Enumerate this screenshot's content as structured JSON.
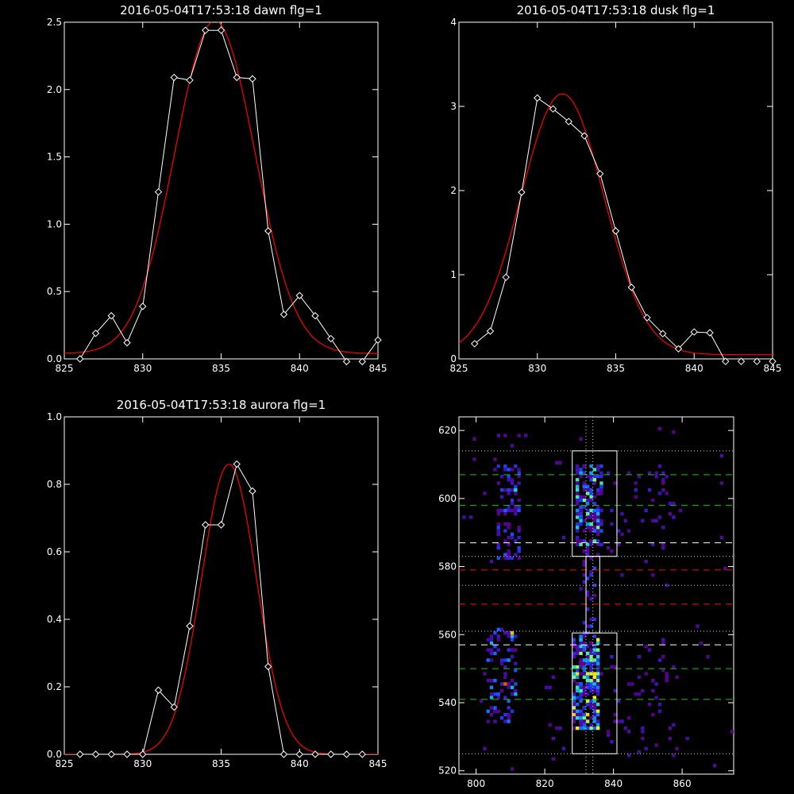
{
  "chart_data": [
    {
      "type": "line",
      "title": "2016-05-04T17:53:18 dawn flg=1",
      "xlim": [
        825,
        845
      ],
      "ylim": [
        0,
        2.5
      ],
      "x_ticks": [
        825,
        830,
        835,
        840,
        845
      ],
      "y_ticks": [
        0.0,
        0.5,
        1.0,
        1.5,
        2.0,
        2.5
      ],
      "x_tick_labels": [
        "825",
        "830",
        "835",
        "840",
        "845"
      ],
      "y_tick_labels": [
        "0.0",
        "0.5",
        "1.0",
        "1.5",
        "2.0",
        "2.5"
      ],
      "series": [
        {
          "color": "#ffffff",
          "marker": "diamond",
          "x": [
            826,
            827,
            828,
            829,
            830,
            831,
            832,
            833,
            834,
            835,
            836,
            837,
            838,
            839,
            840,
            841,
            842,
            843,
            844,
            845
          ],
          "y": [
            0.0,
            0.19,
            0.32,
            0.12,
            0.39,
            1.24,
            2.09,
            2.07,
            2.44,
            2.44,
            2.09,
            2.08,
            0.95,
            0.33,
            0.47,
            0.32,
            0.15,
            -0.02,
            -0.02,
            0.14
          ]
        },
        {
          "color": "#ff0000",
          "fit": "gaussian",
          "peak": 2.47,
          "center": 834.6,
          "sigma": 2.55,
          "baseline": 0.04
        }
      ]
    },
    {
      "type": "line",
      "title": "2016-05-04T17:53:18 dusk flg=1",
      "xlim": [
        825,
        845
      ],
      "ylim": [
        0,
        4
      ],
      "x_ticks": [
        825,
        830,
        835,
        840,
        845
      ],
      "y_ticks": [
        0,
        1,
        2,
        3,
        4
      ],
      "x_tick_labels": [
        "825",
        "830",
        "835",
        "840",
        "845"
      ],
      "y_tick_labels": [
        "0",
        "1",
        "2",
        "3",
        "4"
      ],
      "series": [
        {
          "color": "#ffffff",
          "marker": "diamond",
          "x": [
            826,
            827,
            828,
            829,
            830,
            831,
            832,
            833,
            834,
            835,
            836,
            837,
            838,
            839,
            840,
            841,
            842,
            843,
            844,
            845
          ],
          "y": [
            0.18,
            0.33,
            0.97,
            1.98,
            3.1,
            2.97,
            2.82,
            2.65,
            2.2,
            1.52,
            0.85,
            0.49,
            0.3,
            0.12,
            0.32,
            0.31,
            -0.03,
            -0.03,
            -0.03,
            -0.03
          ]
        },
        {
          "color": "#ff0000",
          "fit": "gaussian",
          "peak": 3.1,
          "center": 831.6,
          "sigma": 2.65,
          "baseline": 0.05
        }
      ]
    },
    {
      "type": "line",
      "title": "2016-05-04T17:53:18 aurora flg=1",
      "xlim": [
        825,
        845
      ],
      "ylim": [
        0,
        1.0
      ],
      "x_ticks": [
        825,
        830,
        835,
        840,
        845
      ],
      "y_ticks": [
        0.0,
        0.2,
        0.4,
        0.6,
        0.8,
        1.0
      ],
      "x_tick_labels": [
        "825",
        "830",
        "835",
        "840",
        "845"
      ],
      "y_tick_labels": [
        "0.0",
        "0.2",
        "0.4",
        "0.6",
        "0.8",
        "1.0"
      ],
      "series": [
        {
          "color": "#ffffff",
          "marker": "diamond",
          "x": [
            826,
            827,
            828,
            829,
            830,
            831,
            832,
            833,
            834,
            835,
            836,
            837,
            838,
            839,
            840,
            841,
            842,
            843,
            844
          ],
          "y": [
            0.0,
            0.0,
            0.0,
            0.0,
            0.0,
            0.19,
            0.14,
            0.38,
            0.68,
            0.68,
            0.86,
            0.78,
            0.26,
            0.0,
            0.0,
            0.0,
            0.0,
            0.0,
            0.0
          ]
        },
        {
          "color": "#ff0000",
          "fit": "gaussian",
          "peak": 0.86,
          "center": 835.5,
          "sigma": 1.75,
          "baseline": 0.0
        }
      ]
    },
    {
      "type": "heatmap",
      "xlim": [
        795,
        875
      ],
      "ylim": [
        519,
        624
      ],
      "x_ticks": [
        800,
        820,
        840,
        860
      ],
      "y_ticks": [
        520,
        540,
        560,
        580,
        600,
        620
      ],
      "x_tick_labels": [
        "800",
        "820",
        "840",
        "860"
      ],
      "y_tick_labels": [
        "520",
        "540",
        "560",
        "580",
        "600",
        "620"
      ],
      "boxes": [
        {
          "x0": 828,
          "x1": 841,
          "y0": 583,
          "y1": 614
        },
        {
          "x0": 828,
          "x1": 841,
          "y0": 525,
          "y1": 560.5
        },
        {
          "x0": 832,
          "x1": 836,
          "y0": 560.5,
          "y1": 583
        }
      ],
      "vlines_dotted": [
        832,
        834
      ],
      "hlines": [
        {
          "y": 614,
          "color": "#cccccc",
          "style": "dotted"
        },
        {
          "y": 607,
          "color": "#00cc00",
          "style": "dashed"
        },
        {
          "y": 598,
          "color": "#00cc00",
          "style": "dashed"
        },
        {
          "y": 587,
          "color": "#ffffff",
          "style": "dashed"
        },
        {
          "y": 583,
          "color": "#cccccc",
          "style": "dotted"
        },
        {
          "y": 579,
          "color": "#ff0000",
          "style": "dashed"
        },
        {
          "y": 574.5,
          "color": "#cccccc",
          "style": "dotted"
        },
        {
          "y": 569,
          "color": "#ff0000",
          "style": "dashed"
        },
        {
          "y": 561,
          "color": "#cccccc",
          "style": "dotted"
        },
        {
          "y": 557,
          "color": "#ffffff",
          "style": "dashed"
        },
        {
          "y": 550,
          "color": "#00cc00",
          "style": "dashed"
        },
        {
          "y": 541,
          "color": "#00cc00",
          "style": "dashed"
        },
        {
          "y": 525,
          "color": "#cccccc",
          "style": "dotted"
        }
      ],
      "blobs": [
        {
          "x0": 828,
          "x1": 836,
          "y0": 532,
          "y1": 560,
          "n": 260,
          "w": 0.9
        },
        {
          "x0": 829,
          "x1": 837,
          "y0": 586,
          "y1": 610,
          "n": 170,
          "w": 0.75
        },
        {
          "x0": 831,
          "x1": 835,
          "y0": 560,
          "y1": 586,
          "n": 30,
          "w": 0.35
        },
        {
          "x0": 803,
          "x1": 812,
          "y0": 534,
          "y1": 562,
          "n": 90,
          "w": 0.55
        },
        {
          "x0": 806,
          "x1": 813,
          "y0": 582,
          "y1": 610,
          "n": 80,
          "w": 0.4
        },
        {
          "x0": 838,
          "x1": 858,
          "y0": 526,
          "y1": 558,
          "n": 45,
          "w": 0.2
        },
        {
          "x0": 838,
          "x1": 860,
          "y0": 584,
          "y1": 608,
          "n": 40,
          "w": 0.2
        },
        {
          "x0": 796,
          "x1": 875,
          "y0": 520,
          "y1": 622,
          "n": 70,
          "w": 0.12
        }
      ],
      "hotspots": [
        {
          "x": 808,
          "y": 545,
          "v": 1.0
        },
        {
          "x": 810,
          "y": 560,
          "v": 0.9
        },
        {
          "x": 832,
          "y": 548,
          "v": 0.8
        },
        {
          "x": 834,
          "y": 605,
          "v": 0.75
        },
        {
          "x": 811,
          "y": 602,
          "v": 0.6
        }
      ]
    }
  ]
}
